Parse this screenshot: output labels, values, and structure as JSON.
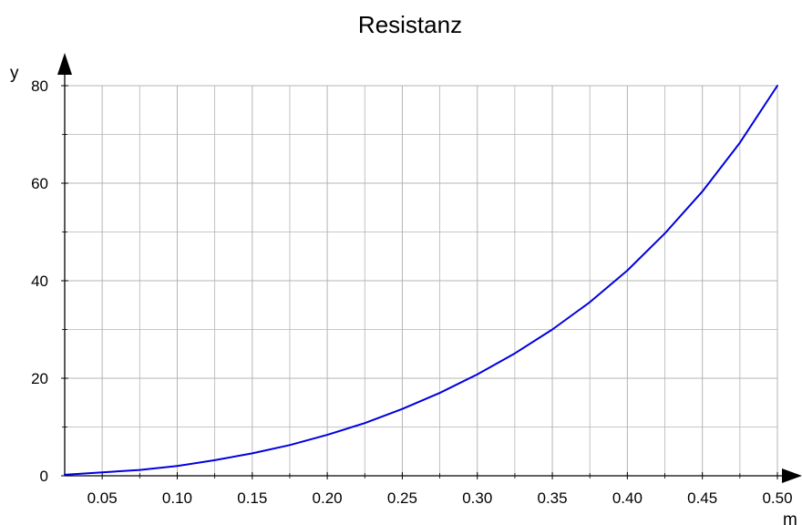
{
  "chart_data": {
    "type": "line",
    "title": "Resistanz",
    "xlabel": "m",
    "ylabel": "y",
    "xlim": [
      0.025,
      0.5
    ],
    "ylim": [
      0,
      80
    ],
    "x_ticks": [
      "0.05",
      "0.10",
      "0.15",
      "0.20",
      "0.25",
      "0.30",
      "0.35",
      "0.40",
      "0.45",
      "0.50"
    ],
    "y_ticks": [
      "0",
      "20",
      "40",
      "60",
      "80"
    ],
    "grid": true,
    "colors": {
      "series": "#0000dd",
      "grid": "#b4b4b4",
      "axis": "#000000"
    },
    "series": [
      {
        "x": [
          0.025,
          0.05,
          0.075,
          0.1,
          0.125,
          0.15,
          0.175,
          0.2,
          0.225,
          0.25,
          0.275,
          0.3,
          0.325,
          0.35,
          0.375,
          0.4,
          0.425,
          0.45,
          0.475,
          0.5
        ],
        "values": [
          0.2,
          0.7,
          1.2,
          2.0,
          3.2,
          4.6,
          6.3,
          8.4,
          10.8,
          13.7,
          17.0,
          20.8,
          25.1,
          30.0,
          35.6,
          42.1,
          49.7,
          58.3,
          68.3,
          80.0
        ]
      }
    ]
  }
}
